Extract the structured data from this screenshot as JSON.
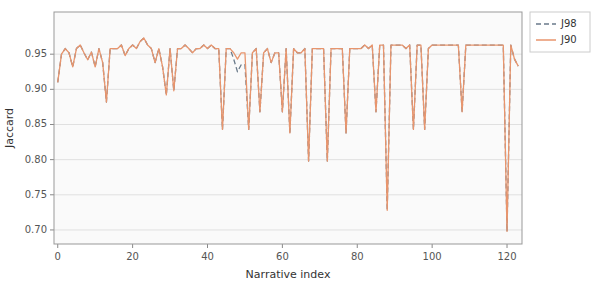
{
  "chart_data": {
    "type": "line",
    "xlabel": "Narrative index",
    "ylabel": "Jaccard",
    "x": [
      0,
      1,
      2,
      3,
      4,
      5,
      6,
      7,
      8,
      9,
      10,
      11,
      12,
      13,
      14,
      15,
      16,
      17,
      18,
      19,
      20,
      21,
      22,
      23,
      24,
      25,
      26,
      27,
      28,
      29,
      30,
      31,
      32,
      33,
      34,
      35,
      36,
      37,
      38,
      39,
      40,
      41,
      42,
      43,
      44,
      45,
      46,
      47,
      48,
      49,
      50,
      51,
      52,
      53,
      54,
      55,
      56,
      57,
      58,
      59,
      60,
      61,
      62,
      63,
      64,
      65,
      66,
      67,
      68,
      69,
      70,
      71,
      72,
      73,
      74,
      75,
      76,
      77,
      78,
      79,
      80,
      81,
      82,
      83,
      84,
      85,
      86,
      87,
      88,
      89,
      90,
      91,
      92,
      93,
      94,
      95,
      96,
      97,
      98,
      99,
      100,
      101,
      102,
      103,
      104,
      105,
      106,
      107,
      108,
      109,
      110,
      111,
      112,
      113,
      114,
      115,
      116,
      117,
      118,
      119,
      120,
      121,
      122,
      123
    ],
    "series": [
      {
        "name": "J98",
        "color": "#6A7A8A",
        "line_style": "dashed",
        "values": [
          0.91,
          0.95,
          0.958,
          0.952,
          0.932,
          0.958,
          0.963,
          0.952,
          0.942,
          0.953,
          0.932,
          0.958,
          0.938,
          0.882,
          0.958,
          0.958,
          0.958,
          0.963,
          0.948,
          0.958,
          0.963,
          0.958,
          0.968,
          0.973,
          0.963,
          0.958,
          0.938,
          0.958,
          0.932,
          0.892,
          0.958,
          0.898,
          0.958,
          0.958,
          0.963,
          0.958,
          0.952,
          0.958,
          0.958,
          0.963,
          0.958,
          0.963,
          0.958,
          0.958,
          0.843,
          0.958,
          0.958,
          0.943,
          0.925,
          0.935,
          0.935,
          0.843,
          0.952,
          0.958,
          0.868,
          0.952,
          0.958,
          0.938,
          0.952,
          0.952,
          0.868,
          0.958,
          0.838,
          0.958,
          0.952,
          0.952,
          0.958,
          0.798,
          0.958,
          0.958,
          0.958,
          0.958,
          0.798,
          0.958,
          0.958,
          0.958,
          0.958,
          0.838,
          0.958,
          0.958,
          0.958,
          0.958,
          0.963,
          0.958,
          0.963,
          0.868,
          0.963,
          0.963,
          0.728,
          0.963,
          0.963,
          0.963,
          0.963,
          0.958,
          0.963,
          0.843,
          0.963,
          0.963,
          0.843,
          0.958,
          0.963,
          0.963,
          0.963,
          0.963,
          0.963,
          0.963,
          0.963,
          0.963,
          0.868,
          0.963,
          0.963,
          0.963,
          0.963,
          0.963,
          0.963,
          0.963,
          0.963,
          0.963,
          0.963,
          0.963,
          0.698,
          0.963,
          0.943,
          0.933
        ]
      },
      {
        "name": "J90",
        "color": "#E8956D",
        "line_style": "solid",
        "values": [
          0.91,
          0.95,
          0.958,
          0.952,
          0.932,
          0.958,
          0.963,
          0.952,
          0.942,
          0.953,
          0.932,
          0.958,
          0.938,
          0.882,
          0.958,
          0.958,
          0.958,
          0.963,
          0.948,
          0.958,
          0.963,
          0.958,
          0.968,
          0.973,
          0.963,
          0.958,
          0.938,
          0.958,
          0.932,
          0.892,
          0.958,
          0.898,
          0.958,
          0.958,
          0.963,
          0.958,
          0.952,
          0.958,
          0.958,
          0.963,
          0.958,
          0.963,
          0.958,
          0.958,
          0.843,
          0.958,
          0.958,
          0.952,
          0.943,
          0.952,
          0.952,
          0.843,
          0.952,
          0.958,
          0.868,
          0.952,
          0.958,
          0.938,
          0.952,
          0.952,
          0.868,
          0.958,
          0.838,
          0.958,
          0.952,
          0.952,
          0.958,
          0.798,
          0.958,
          0.958,
          0.958,
          0.958,
          0.798,
          0.958,
          0.958,
          0.958,
          0.958,
          0.838,
          0.958,
          0.958,
          0.958,
          0.958,
          0.963,
          0.958,
          0.963,
          0.868,
          0.963,
          0.963,
          0.728,
          0.963,
          0.963,
          0.963,
          0.963,
          0.958,
          0.963,
          0.843,
          0.963,
          0.963,
          0.843,
          0.958,
          0.963,
          0.963,
          0.963,
          0.963,
          0.963,
          0.963,
          0.963,
          0.963,
          0.868,
          0.963,
          0.963,
          0.963,
          0.963,
          0.963,
          0.963,
          0.963,
          0.963,
          0.963,
          0.963,
          0.963,
          0.698,
          0.963,
          0.943,
          0.933
        ]
      }
    ],
    "xlim": [
      -1,
      124
    ],
    "ylim": [
      0.68,
      1.01
    ],
    "xticks": [
      0,
      20,
      40,
      60,
      80,
      100,
      120
    ],
    "yticks": [
      {
        "value": 0.7,
        "label": "0.70"
      },
      0.75,
      {
        "value": 0.8,
        "label": "0.80"
      },
      0.85,
      {
        "value": 0.9,
        "label": "0.90"
      },
      0.95
    ],
    "grid": true,
    "legend": "right"
  }
}
